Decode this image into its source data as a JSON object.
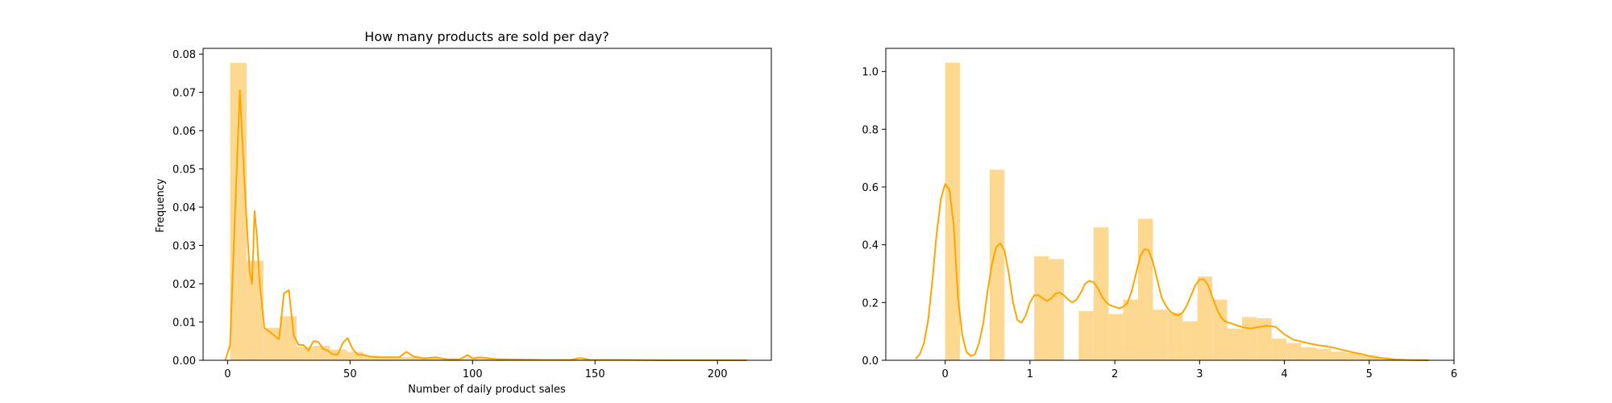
{
  "figure": {
    "background": "#ffffff"
  },
  "chart_data": [
    {
      "type": "bar",
      "title": "How many products are sold per day?",
      "xlabel": "Number of daily product sales",
      "ylabel": "Frequency",
      "xlim": [
        -10,
        222
      ],
      "ylim": [
        0,
        0.0815
      ],
      "x_ticks": [
        0,
        50,
        100,
        150,
        200
      ],
      "x_tick_labels": [
        "0",
        "50",
        "100",
        "150",
        "200"
      ],
      "y_ticks": [
        0,
        0.01,
        0.02,
        0.03,
        0.04,
        0.05,
        0.06,
        0.07,
        0.08
      ],
      "y_tick_labels": [
        "0.00",
        "0.01",
        "0.02",
        "0.03",
        "0.04",
        "0.05",
        "0.06",
        "0.07",
        "0.08"
      ],
      "grid": false,
      "bar_color": "#fcd890",
      "kde_color": "#ffa500",
      "histogram": {
        "bin_edges": [
          1,
          7.8,
          14.6,
          21.4,
          28.2,
          35,
          41.8,
          48.6,
          55.4,
          62.2,
          69,
          75.8,
          82.6,
          89.4,
          96.2,
          103,
          109.8,
          116.6,
          123.4,
          130.2,
          137,
          143.8,
          150.6,
          157.4,
          164.2,
          171,
          177.8,
          184.6,
          191.4,
          198.2,
          205,
          211.8
        ],
        "values": [
          0.0777,
          0.026,
          0.0085,
          0.0115,
          0.0035,
          0.0038,
          0.0028,
          0.0022,
          0.0012,
          0.001,
          0.0009,
          0.0008,
          0.0006,
          0.0005,
          0.0005,
          0.0004,
          0.0003,
          0.0003,
          0.0003,
          0.0002,
          0.0002,
          0.0002,
          0.0002,
          0.0001,
          0.0001,
          0.0001,
          0.0001,
          0.0001,
          0.0001,
          0.0001,
          0.0001
        ]
      },
      "kde": {
        "x": [
          -1,
          1,
          3,
          5,
          7,
          9,
          10,
          11,
          12,
          13,
          15,
          17,
          19,
          21,
          23,
          25,
          27,
          29,
          31,
          33,
          35,
          37,
          39,
          41,
          43,
          45,
          47,
          49,
          51,
          53,
          55,
          58,
          62,
          66,
          70,
          73,
          76,
          80,
          85,
          90,
          95,
          98,
          100,
          103,
          110,
          120,
          130,
          140,
          144,
          148,
          160,
          180,
          200,
          212
        ],
        "y": [
          0,
          0.004,
          0.038,
          0.0705,
          0.045,
          0.023,
          0.02,
          0.039,
          0.032,
          0.021,
          0.0085,
          0.0075,
          0.0065,
          0.0055,
          0.0175,
          0.0183,
          0.0065,
          0.004,
          0.004,
          0.0025,
          0.005,
          0.0048,
          0.003,
          0.0025,
          0.0015,
          0.0015,
          0.0045,
          0.0058,
          0.003,
          0.0015,
          0.0015,
          0.001,
          0.0008,
          0.0008,
          0.0008,
          0.0022,
          0.001,
          0.0005,
          0.0008,
          0.0002,
          0.0003,
          0.0014,
          0.0005,
          0.0008,
          0.0003,
          0.0002,
          0.0001,
          0.0001,
          0.0006,
          0.0001,
          0.0001,
          0,
          0,
          0
        ]
      }
    },
    {
      "type": "bar",
      "title": "",
      "xlabel": "",
      "ylabel": "",
      "xlim": [
        -0.7,
        6
      ],
      "ylim": [
        0,
        1.08
      ],
      "x_ticks": [
        0,
        1,
        2,
        3,
        4,
        5,
        6
      ],
      "x_tick_labels": [
        "0",
        "1",
        "2",
        "3",
        "4",
        "5",
        "6"
      ],
      "y_ticks": [
        0,
        0.2,
        0.4,
        0.6,
        0.8,
        1.0
      ],
      "y_tick_labels": [
        "0.0",
        "0.2",
        "0.4",
        "0.6",
        "0.8",
        "1.0"
      ],
      "grid": false,
      "bar_color": "#fcd890",
      "kde_color": "#ffa500",
      "histogram": {
        "bin_edges": [
          0,
          0.175,
          0.35,
          0.525,
          0.7,
          0.875,
          1.05,
          1.225,
          1.4,
          1.575,
          1.75,
          1.925,
          2.1,
          2.275,
          2.45,
          2.625,
          2.8,
          2.975,
          3.15,
          3.325,
          3.5,
          3.675,
          3.85,
          4.025,
          4.2,
          4.375,
          4.55,
          4.725,
          4.9,
          5.075,
          5.25,
          5.425,
          5.6
        ],
        "values": [
          1.03,
          0,
          0,
          0.66,
          0,
          0,
          0.36,
          0.35,
          0,
          0.17,
          0.46,
          0.16,
          0.21,
          0.49,
          0.175,
          0.165,
          0.135,
          0.29,
          0.21,
          0.11,
          0.15,
          0.145,
          0.075,
          0.06,
          0.045,
          0.04,
          0.03,
          0.025,
          0.015,
          0.01,
          0.006,
          0.003
        ]
      },
      "kde": {
        "x": [
          -0.35,
          -0.3,
          -0.25,
          -0.2,
          -0.15,
          -0.1,
          -0.05,
          0,
          0.05,
          0.1,
          0.15,
          0.2,
          0.25,
          0.3,
          0.35,
          0.4,
          0.45,
          0.5,
          0.55,
          0.6,
          0.65,
          0.7,
          0.75,
          0.8,
          0.85,
          0.9,
          0.95,
          1.0,
          1.05,
          1.1,
          1.15,
          1.2,
          1.25,
          1.3,
          1.35,
          1.4,
          1.45,
          1.5,
          1.55,
          1.6,
          1.65,
          1.7,
          1.75,
          1.8,
          1.85,
          1.9,
          1.95,
          2.0,
          2.05,
          2.1,
          2.15,
          2.2,
          2.25,
          2.3,
          2.35,
          2.4,
          2.45,
          2.5,
          2.55,
          2.6,
          2.65,
          2.7,
          2.75,
          2.8,
          2.85,
          2.9,
          2.95,
          3.0,
          3.05,
          3.1,
          3.15,
          3.2,
          3.25,
          3.3,
          3.35,
          3.4,
          3.45,
          3.5,
          3.6,
          3.7,
          3.8,
          3.9,
          4.0,
          4.1,
          4.2,
          4.3,
          4.4,
          4.5,
          4.6,
          4.7,
          4.8,
          4.9,
          5.0,
          5.1,
          5.2,
          5.3,
          5.4,
          5.5,
          5.6,
          5.7
        ],
        "y": [
          0.005,
          0.02,
          0.06,
          0.14,
          0.28,
          0.44,
          0.56,
          0.61,
          0.59,
          0.47,
          0.22,
          0.09,
          0.03,
          0.015,
          0.02,
          0.06,
          0.13,
          0.24,
          0.33,
          0.39,
          0.405,
          0.38,
          0.3,
          0.2,
          0.14,
          0.13,
          0.155,
          0.2,
          0.225,
          0.225,
          0.215,
          0.205,
          0.215,
          0.23,
          0.235,
          0.225,
          0.21,
          0.2,
          0.21,
          0.235,
          0.265,
          0.275,
          0.27,
          0.25,
          0.22,
          0.2,
          0.19,
          0.185,
          0.18,
          0.185,
          0.2,
          0.24,
          0.3,
          0.36,
          0.385,
          0.38,
          0.34,
          0.28,
          0.22,
          0.19,
          0.17,
          0.16,
          0.155,
          0.165,
          0.19,
          0.225,
          0.26,
          0.28,
          0.28,
          0.26,
          0.22,
          0.18,
          0.15,
          0.135,
          0.13,
          0.125,
          0.12,
          0.115,
          0.11,
          0.115,
          0.12,
          0.115,
          0.09,
          0.072,
          0.065,
          0.058,
          0.052,
          0.048,
          0.042,
          0.035,
          0.028,
          0.022,
          0.015,
          0.01,
          0.006,
          0.003,
          0.0015,
          0.0008,
          0.0003,
          0
        ]
      }
    }
  ]
}
